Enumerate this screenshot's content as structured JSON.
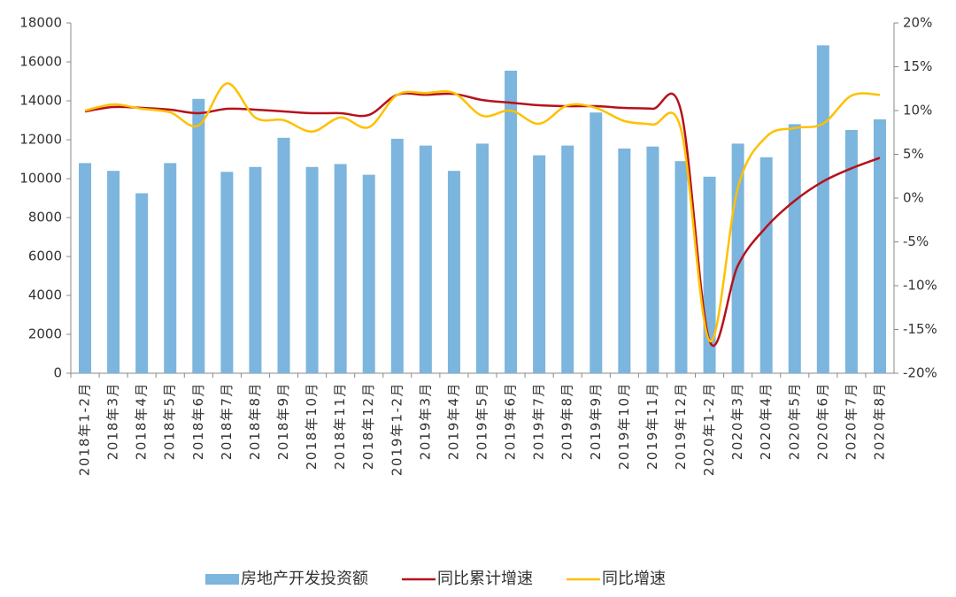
{
  "chart_data": {
    "type": "bar-line",
    "categories": [
      "2018年1-2月",
      "2018年3月",
      "2018年4月",
      "2018年5月",
      "2018年6月",
      "2018年7月",
      "2018年8月",
      "2018年9月",
      "2018年10月",
      "2018年11月",
      "2018年12月",
      "2019年1-2月",
      "2019年3月",
      "2019年4月",
      "2019年5月",
      "2019年6月",
      "2019年7月",
      "2019年8月",
      "2019年9月",
      "2019年10月",
      "2019年11月",
      "2019年12月",
      "2020年1-2月",
      "2020年3月",
      "2020年4月",
      "2020年5月",
      "2020年6月",
      "2020年7月",
      "2020年8月"
    ],
    "series": [
      {
        "name": "房地产开发投资额",
        "type": "bar",
        "color": "#7cb5dd",
        "values": [
          10800,
          10400,
          9250,
          10800,
          14100,
          10350,
          10600,
          12100,
          10600,
          10750,
          10200,
          12050,
          11700,
          10400,
          11800,
          15550,
          11200,
          11700,
          13400,
          11550,
          11650,
          10900,
          10100,
          11800,
          11100,
          12800,
          16850,
          12500,
          13050
        ]
      },
      {
        "name": "同比累计增速",
        "type": "line",
        "axis": "y2",
        "color": "#b5121b",
        "values": [
          9.9,
          10.4,
          10.3,
          10.1,
          9.7,
          10.2,
          10.1,
          9.9,
          9.7,
          9.7,
          9.5,
          11.8,
          11.8,
          11.9,
          11.2,
          10.9,
          10.6,
          10.5,
          10.5,
          10.3,
          10.2,
          9.9,
          -16.3,
          -7.7,
          -3.3,
          -0.3,
          1.9,
          3.4,
          4.6
        ]
      },
      {
        "name": "同比增速",
        "type": "line",
        "axis": "y2",
        "color": "#ffc000",
        "values": [
          10.0,
          10.7,
          10.2,
          9.8,
          8.3,
          13.1,
          9.2,
          8.9,
          7.6,
          9.2,
          8.1,
          11.8,
          12.0,
          12.0,
          9.4,
          10.0,
          8.5,
          10.6,
          10.3,
          8.8,
          8.4,
          7.8,
          -16.3,
          1.2,
          7.0,
          8.0,
          8.5,
          11.7,
          11.8
        ]
      }
    ],
    "ylim": [
      0,
      18000
    ],
    "yticks": [
      0,
      2000,
      4000,
      6000,
      8000,
      10000,
      12000,
      14000,
      16000,
      18000
    ],
    "y2lim": [
      -20,
      20
    ],
    "y2ticks": [
      {
        "value": -20,
        "label": "-20%"
      },
      {
        "value": -15,
        "label": "-15%"
      },
      {
        "value": -10,
        "label": "-10%"
      },
      {
        "value": -5,
        "label": "-5%"
      },
      {
        "value": 0,
        "label": "0%"
      },
      {
        "value": 5,
        "label": "5%"
      },
      {
        "value": 10,
        "label": "10%"
      },
      {
        "value": 15,
        "label": "15%"
      },
      {
        "value": 20,
        "label": "20%"
      }
    ],
    "grid": false,
    "legend": "bottom"
  }
}
